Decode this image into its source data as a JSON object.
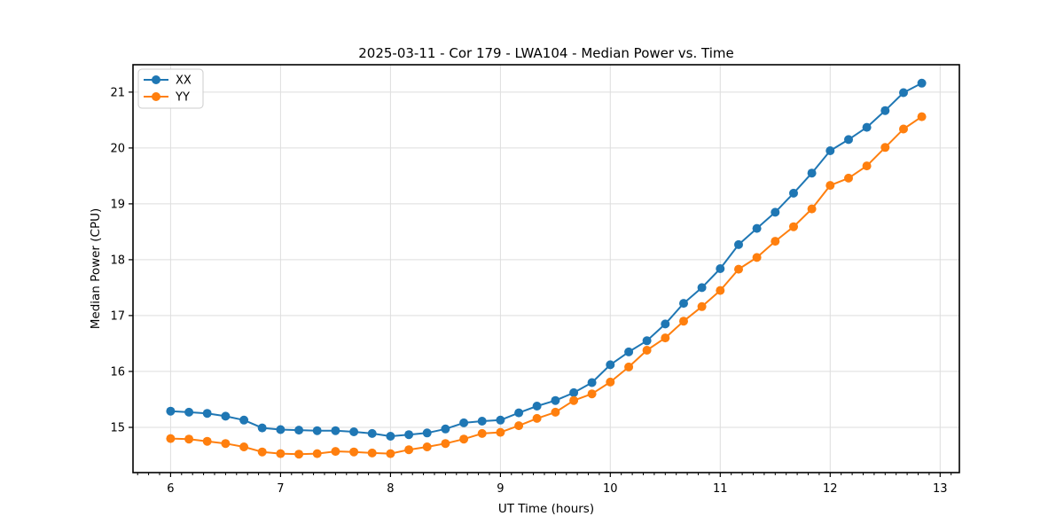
{
  "chart_data": {
    "type": "line",
    "title": "2025-03-11 - Cor 179 - LWA104 - Median Power vs. Time",
    "xlabel": "UT Time (hours)",
    "ylabel": "Median Power (CPU)",
    "xlim": [
      5.658,
      13.175
    ],
    "ylim": [
      14.19,
      21.49
    ],
    "xticks": [
      6,
      7,
      8,
      9,
      10,
      11,
      12,
      13
    ],
    "yticks": [
      15,
      16,
      17,
      18,
      19,
      20,
      21
    ],
    "x_minor_tick_step": 0.1,
    "grid": true,
    "legend_position": "upper-left",
    "x": [
      6.0,
      6.167,
      6.333,
      6.5,
      6.667,
      6.833,
      7.0,
      7.167,
      7.333,
      7.5,
      7.667,
      7.833,
      8.0,
      8.167,
      8.333,
      8.5,
      8.667,
      8.833,
      9.0,
      9.167,
      9.333,
      9.5,
      9.667,
      9.833,
      10.0,
      10.167,
      10.333,
      10.5,
      10.667,
      10.833,
      11.0,
      11.167,
      11.333,
      11.5,
      11.667,
      11.833,
      12.0,
      12.167,
      12.333,
      12.5,
      12.667,
      12.833
    ],
    "series": [
      {
        "name": "XX",
        "color": "#1f77b4",
        "values": [
          15.29,
          15.27,
          15.25,
          15.2,
          15.13,
          14.99,
          14.96,
          14.95,
          14.94,
          14.94,
          14.92,
          14.89,
          14.84,
          14.87,
          14.9,
          14.97,
          15.08,
          15.11,
          15.13,
          15.26,
          15.38,
          15.48,
          15.62,
          15.8,
          16.12,
          16.35,
          16.55,
          16.85,
          17.22,
          17.5,
          17.84,
          18.27,
          18.56,
          18.85,
          19.19,
          19.55,
          19.95,
          20.15,
          20.37,
          20.67,
          20.99,
          21.16
        ]
      },
      {
        "name": "YY",
        "color": "#ff7f0e",
        "values": [
          14.8,
          14.79,
          14.75,
          14.71,
          14.65,
          14.56,
          14.53,
          14.52,
          14.53,
          14.57,
          14.56,
          14.54,
          14.53,
          14.6,
          14.65,
          14.71,
          14.79,
          14.89,
          14.91,
          15.03,
          15.16,
          15.27,
          15.48,
          15.6,
          15.81,
          16.08,
          16.38,
          16.6,
          16.9,
          17.16,
          17.45,
          17.83,
          18.04,
          18.33,
          18.59,
          18.91,
          19.33,
          19.46,
          19.68,
          20.01,
          20.34,
          20.56
        ]
      }
    ]
  }
}
